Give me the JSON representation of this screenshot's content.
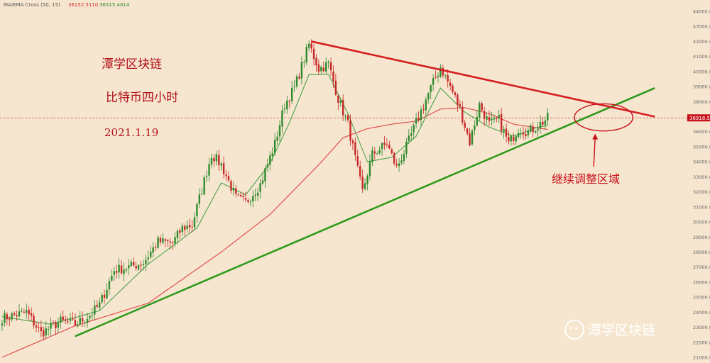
{
  "indicator": {
    "label": "MA/EMA Cross (50, 15)",
    "value1": "36152.5110",
    "value2": "36515.4014"
  },
  "notes": {
    "line1": "潭学区块链",
    "line2": "比特币四小时",
    "line3": "2021.1.19"
  },
  "annotation": "继续调整区域",
  "current_price_label": "36918.52",
  "watermark": "潭学区块链",
  "colors": {
    "bg": "#f7e6cf",
    "up": "#2e8b2e",
    "down": "#c62828",
    "ma_fast": "#55a855",
    "ma_slow": "#e05050",
    "trend_support": "#2f9a1f",
    "trend_resistance": "#d42020",
    "accent": "#c8101a"
  },
  "chart_data": {
    "type": "candlestick",
    "title": "",
    "xlabel": "",
    "ylabel": "",
    "ylim": [
      21000,
      44000
    ],
    "y_ticks": [
      "44000.00",
      "43000.00",
      "42000.00",
      "41000.00",
      "40000.00",
      "39000.00",
      "38000.00",
      "37000.00",
      "36000.00",
      "35000.00",
      "34000.00",
      "33000.00",
      "32000.00",
      "31000.00",
      "30000.00",
      "29000.00",
      "28000.00",
      "27000.00",
      "26000.00",
      "25000.00",
      "24000.00",
      "23000.00",
      "22000.00",
      "21000.00"
    ],
    "close_anchors": [
      [
        0,
        23600
      ],
      [
        10,
        24000
      ],
      [
        16,
        22600
      ],
      [
        24,
        23400
      ],
      [
        30,
        23200
      ],
      [
        36,
        23800
      ],
      [
        40,
        24500
      ],
      [
        46,
        26800
      ],
      [
        52,
        27000
      ],
      [
        58,
        27300
      ],
      [
        64,
        28700
      ],
      [
        70,
        28600
      ],
      [
        74,
        29600
      ],
      [
        78,
        29800
      ],
      [
        86,
        34500
      ],
      [
        90,
        33800
      ],
      [
        96,
        31600
      ],
      [
        100,
        31300
      ],
      [
        106,
        32500
      ],
      [
        112,
        35200
      ],
      [
        116,
        37800
      ],
      [
        120,
        38900
      ],
      [
        126,
        41800
      ],
      [
        130,
        40200
      ],
      [
        134,
        40500
      ],
      [
        138,
        38200
      ],
      [
        142,
        36500
      ],
      [
        146,
        33400
      ],
      [
        148,
        32000
      ],
      [
        152,
        34500
      ],
      [
        158,
        35200
      ],
      [
        162,
        33600
      ],
      [
        166,
        35000
      ],
      [
        170,
        36600
      ],
      [
        176,
        38900
      ],
      [
        180,
        40300
      ],
      [
        184,
        39000
      ],
      [
        188,
        37500
      ],
      [
        192,
        35300
      ],
      [
        196,
        37800
      ],
      [
        200,
        36500
      ],
      [
        204,
        36800
      ],
      [
        208,
        35200
      ],
      [
        212,
        36200
      ],
      [
        216,
        36000
      ],
      [
        220,
        36400
      ],
      [
        224,
        36900
      ]
    ],
    "series": [
      {
        "name": "EMA 15",
        "values": [
          [
            0,
            23700
          ],
          [
            20,
            23200
          ],
          [
            40,
            24100
          ],
          [
            60,
            27200
          ],
          [
            80,
            29600
          ],
          [
            90,
            32600
          ],
          [
            100,
            31800
          ],
          [
            110,
            33900
          ],
          [
            118,
            36600
          ],
          [
            126,
            39800
          ],
          [
            134,
            39800
          ],
          [
            142,
            37200
          ],
          [
            150,
            34000
          ],
          [
            160,
            34300
          ],
          [
            170,
            35700
          ],
          [
            180,
            38900
          ],
          [
            190,
            37300
          ],
          [
            200,
            36300
          ],
          [
            210,
            35700
          ],
          [
            220,
            36300
          ],
          [
            224,
            36400
          ]
        ]
      },
      {
        "name": "MA 50",
        "values": [
          [
            0,
            21000
          ],
          [
            30,
            23100
          ],
          [
            60,
            24600
          ],
          [
            90,
            28000
          ],
          [
            110,
            30500
          ],
          [
            130,
            33800
          ],
          [
            140,
            35600
          ],
          [
            150,
            36200
          ],
          [
            160,
            36500
          ],
          [
            170,
            36700
          ],
          [
            180,
            37500
          ],
          [
            190,
            37600
          ],
          [
            200,
            37200
          ],
          [
            210,
            36500
          ],
          [
            224,
            36150
          ]
        ]
      }
    ],
    "trendlines": [
      {
        "name": "support",
        "from": [
          30,
          22400
        ],
        "to": [
          268,
          38900
        ]
      },
      {
        "name": "resistance",
        "from": [
          127,
          42000
        ],
        "to": [
          268,
          37000
        ]
      }
    ],
    "current_price": 36918.52,
    "annotation_ellipse": {
      "center": [
        247,
        36950
      ],
      "rx_bars": 12,
      "ry_price": 900
    }
  }
}
